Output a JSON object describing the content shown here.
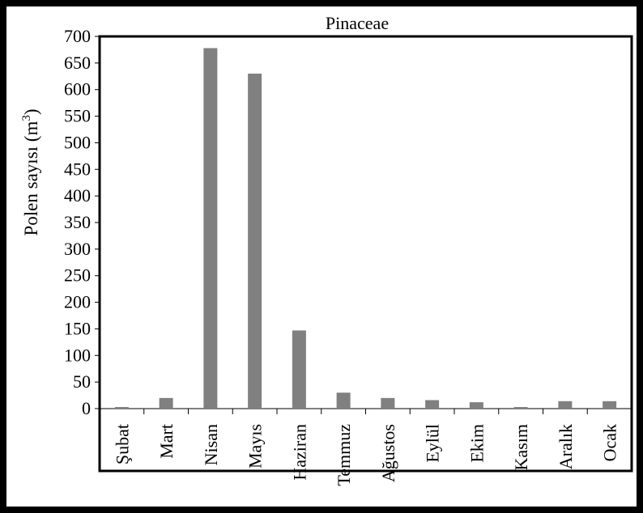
{
  "chart_data": {
    "type": "bar",
    "title": "Pinaceae",
    "xlabel": "",
    "ylabel": "Polen sayısı (m",
    "ylabel_superscript": "3",
    "ylabel_suffix": ")",
    "categories": [
      "Şubat",
      "Mart",
      "Nisan",
      "Mayıs",
      "Haziran",
      "Temmuz",
      "Ağustos",
      "Eylül",
      "Ekim",
      "Kasım",
      "Aralık",
      "Ocak"
    ],
    "values": [
      3,
      20,
      678,
      630,
      147,
      30,
      20,
      16,
      12,
      3,
      14,
      14
    ],
    "ylim": [
      0,
      700
    ],
    "yticks": [
      0,
      50,
      100,
      150,
      200,
      250,
      300,
      350,
      400,
      450,
      500,
      550,
      600,
      650,
      700
    ],
    "grid": false,
    "bar_color": "#808080",
    "legend": "none"
  }
}
